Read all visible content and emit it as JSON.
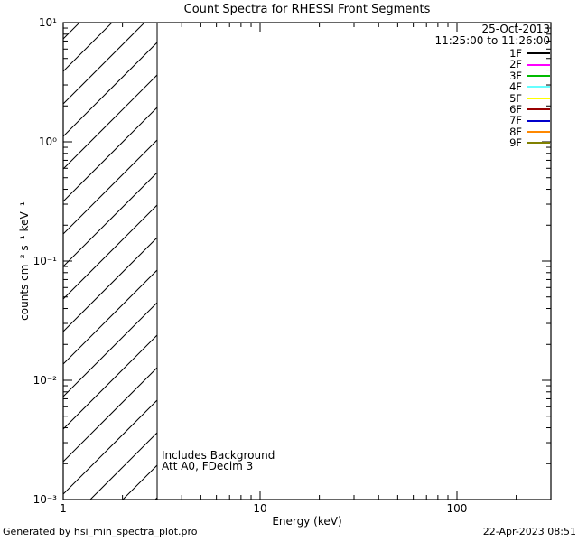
{
  "title": "Count Spectra for RHESSI Front Segments",
  "annotations": {
    "date": "25-Oct-2013",
    "time_range": "11:25:00 to 11:26:00",
    "includes_background": "Includes Background",
    "attenuation": "Att A0, FDecim 3"
  },
  "footer": {
    "generated_by": "Generated by hsi_min_spectra_plot.pro",
    "timestamp": "22-Apr-2023 08:51"
  },
  "legend": [
    {
      "label": "1F",
      "color": "#000000"
    },
    {
      "label": "2F",
      "color": "#ff00ff"
    },
    {
      "label": "3F",
      "color": "#00bb00"
    },
    {
      "label": "4F",
      "color": "#66ffff"
    },
    {
      "label": "5F",
      "color": "#ffff00"
    },
    {
      "label": "6F",
      "color": "#990000"
    },
    {
      "label": "7F",
      "color": "#0000cc"
    },
    {
      "label": "8F",
      "color": "#ff8800"
    },
    {
      "label": "9F",
      "color": "#808000"
    }
  ],
  "axes": {
    "x": {
      "label": "Energy (keV)",
      "scale": "log",
      "min": 1,
      "max": 300,
      "major_ticks": [
        {
          "value": 1,
          "label": "1"
        },
        {
          "value": 10,
          "label": "10"
        },
        {
          "value": 100,
          "label": "100"
        }
      ]
    },
    "y": {
      "label": "counts cm⁻² s⁻¹ keV⁻¹",
      "scale": "log",
      "min": 0.001,
      "max": 10,
      "major_ticks": [
        {
          "value": 10,
          "label": "10¹"
        },
        {
          "value": 1,
          "label": "10⁰"
        },
        {
          "value": 0.1,
          "label": "10⁻¹"
        },
        {
          "value": 0.01,
          "label": "10⁻²"
        },
        {
          "value": 0.001,
          "label": "10⁻³"
        }
      ]
    }
  },
  "chart_data": {
    "type": "line",
    "title": "Count Spectra for RHESSI Front Segments",
    "xlabel": "Energy (keV)",
    "ylabel": "counts cm^-2 s^-1 keV^-1",
    "xscale": "log",
    "yscale": "log",
    "xlim": [
      1,
      300
    ],
    "ylim": [
      0.001,
      10
    ],
    "grid": false,
    "legend_position": "upper right",
    "legend_entries": [
      "1F",
      "2F",
      "3F",
      "4F",
      "5F",
      "6F",
      "7F",
      "8F",
      "9F"
    ],
    "series": [],
    "hatched_region": {
      "x_range": [
        1,
        3
      ],
      "y_range": [
        0.001,
        10
      ],
      "style": "diagonal-hatch",
      "note": "Diagonally hatched exclusion band from 1 to 3 keV spanning the full y-range; no spectral curves are visible elsewhere in the plot area."
    }
  }
}
